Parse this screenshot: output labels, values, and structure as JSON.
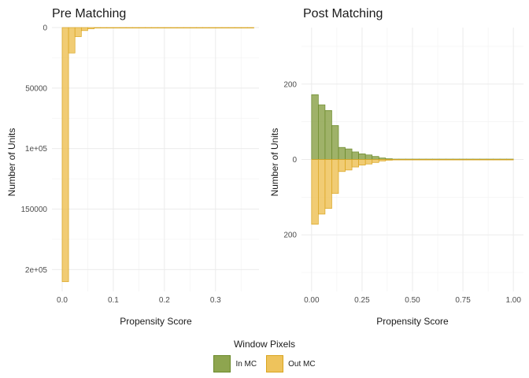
{
  "colors": {
    "in_fill": "#8ea54f",
    "in_stroke": "#6b8a2a",
    "out_fill": "#eec35c",
    "out_stroke": "#d9a520"
  },
  "legend": {
    "title": "Window Pixels",
    "items": [
      {
        "label": "In MC",
        "color": "#8ea54f",
        "border": "#6b8a2a"
      },
      {
        "label": "Out MC",
        "color": "#eec35c",
        "border": "#d9a520"
      }
    ]
  },
  "chart_data": [
    {
      "type": "bar",
      "title": "Pre Matching",
      "xlabel": "Propensity Score",
      "ylabel": "Number of Units",
      "xlim": [
        -0.02,
        0.385
      ],
      "ylim": [
        0,
        218000
      ],
      "x_ticks": [
        {
          "value": 0.0,
          "label": "0.0"
        },
        {
          "value": 0.1,
          "label": "0.1"
        },
        {
          "value": 0.2,
          "label": "0.2"
        },
        {
          "value": 0.3,
          "label": "0.3"
        }
      ],
      "y_ticks": [
        {
          "value": 0,
          "label": "0"
        },
        {
          "value": 50000,
          "label": "50000"
        },
        {
          "value": 100000,
          "label": "1e+05"
        },
        {
          "value": 150000,
          "label": "150000"
        },
        {
          "value": 200000,
          "label": "2e+05"
        }
      ],
      "bin_width": 0.0125,
      "series": [
        {
          "group": "Out MC",
          "direction": "down",
          "bins": [
            {
              "x": 0.0,
              "count": 210000
            },
            {
              "x": 0.0125,
              "count": 21000
            },
            {
              "x": 0.025,
              "count": 7500
            },
            {
              "x": 0.0375,
              "count": 2500
            },
            {
              "x": 0.05,
              "count": 1000
            },
            {
              "x": 0.0625,
              "count": 400
            },
            {
              "x": 0.075,
              "count": 200
            },
            {
              "x": 0.0875,
              "count": 120
            },
            {
              "x": 0.1,
              "count": 80
            },
            {
              "x": 0.1125,
              "count": 60
            },
            {
              "x": 0.125,
              "count": 50
            },
            {
              "x": 0.1375,
              "count": 40
            },
            {
              "x": 0.15,
              "count": 30
            },
            {
              "x": 0.1625,
              "count": 25
            },
            {
              "x": 0.175,
              "count": 20
            },
            {
              "x": 0.1875,
              "count": 18
            },
            {
              "x": 0.2,
              "count": 15
            },
            {
              "x": 0.2125,
              "count": 12
            },
            {
              "x": 0.225,
              "count": 10
            },
            {
              "x": 0.2375,
              "count": 8
            },
            {
              "x": 0.25,
              "count": 7
            },
            {
              "x": 0.2625,
              "count": 6
            },
            {
              "x": 0.275,
              "count": 5
            },
            {
              "x": 0.2875,
              "count": 4
            },
            {
              "x": 0.3,
              "count": 4
            },
            {
              "x": 0.3125,
              "count": 3
            },
            {
              "x": 0.325,
              "count": 3
            },
            {
              "x": 0.3375,
              "count": 2
            },
            {
              "x": 0.35,
              "count": 2
            },
            {
              "x": 0.3625,
              "count": 1
            }
          ]
        }
      ]
    },
    {
      "type": "bar",
      "title": "Post Matching",
      "xlabel": "Propensity Score",
      "ylabel": "Number of Units",
      "xlim": [
        -0.05,
        1.05
      ],
      "ylim": [
        -350,
        350
      ],
      "x_ticks": [
        {
          "value": 0.0,
          "label": "0.00"
        },
        {
          "value": 0.25,
          "label": "0.25"
        },
        {
          "value": 0.5,
          "label": "0.50"
        },
        {
          "value": 0.75,
          "label": "0.75"
        },
        {
          "value": 1.0,
          "label": "1.00"
        }
      ],
      "y_ticks": [
        {
          "value": 200,
          "label": "200"
        },
        {
          "value": 0,
          "label": "0"
        },
        {
          "value": -200,
          "label": "200"
        }
      ],
      "bin_width": 0.0333,
      "series": [
        {
          "group": "In MC",
          "direction": "up",
          "bins": [
            {
              "x": 0.0,
              "count": 172
            },
            {
              "x": 0.0333,
              "count": 145
            },
            {
              "x": 0.0667,
              "count": 130
            },
            {
              "x": 0.1,
              "count": 90
            },
            {
              "x": 0.1333,
              "count": 32
            },
            {
              "x": 0.1667,
              "count": 28
            },
            {
              "x": 0.2,
              "count": 20
            },
            {
              "x": 0.2333,
              "count": 15
            },
            {
              "x": 0.2667,
              "count": 12
            },
            {
              "x": 0.3,
              "count": 8
            },
            {
              "x": 0.3333,
              "count": 4
            },
            {
              "x": 0.3667,
              "count": 2
            },
            {
              "x": 0.4,
              "count": 1
            },
            {
              "x": 0.4333,
              "count": 1
            },
            {
              "x": 0.4667,
              "count": 1
            },
            {
              "x": 0.5,
              "count": 1
            },
            {
              "x": 0.5333,
              "count": 1
            },
            {
              "x": 0.5667,
              "count": 1
            },
            {
              "x": 0.6,
              "count": 1
            },
            {
              "x": 0.6333,
              "count": 1
            },
            {
              "x": 0.6667,
              "count": 1
            },
            {
              "x": 0.7,
              "count": 1
            },
            {
              "x": 0.7333,
              "count": 1
            },
            {
              "x": 0.7667,
              "count": 1
            },
            {
              "x": 0.8,
              "count": 1
            },
            {
              "x": 0.8333,
              "count": 1
            },
            {
              "x": 0.8667,
              "count": 1
            },
            {
              "x": 0.9,
              "count": 1
            },
            {
              "x": 0.9333,
              "count": 1
            },
            {
              "x": 0.9667,
              "count": 1
            }
          ]
        },
        {
          "group": "Out MC",
          "direction": "down",
          "bins": [
            {
              "x": 0.0,
              "count": 172
            },
            {
              "x": 0.0333,
              "count": 145
            },
            {
              "x": 0.0667,
              "count": 130
            },
            {
              "x": 0.1,
              "count": 90
            },
            {
              "x": 0.1333,
              "count": 32
            },
            {
              "x": 0.1667,
              "count": 28
            },
            {
              "x": 0.2,
              "count": 20
            },
            {
              "x": 0.2333,
              "count": 15
            },
            {
              "x": 0.2667,
              "count": 12
            },
            {
              "x": 0.3,
              "count": 8
            },
            {
              "x": 0.3333,
              "count": 4
            },
            {
              "x": 0.3667,
              "count": 2
            },
            {
              "x": 0.4,
              "count": 1
            },
            {
              "x": 0.4333,
              "count": 1
            },
            {
              "x": 0.4667,
              "count": 1
            },
            {
              "x": 0.5,
              "count": 1
            },
            {
              "x": 0.5333,
              "count": 1
            },
            {
              "x": 0.5667,
              "count": 1
            },
            {
              "x": 0.6,
              "count": 1
            },
            {
              "x": 0.6333,
              "count": 1
            },
            {
              "x": 0.6667,
              "count": 1
            },
            {
              "x": 0.7,
              "count": 1
            },
            {
              "x": 0.7333,
              "count": 1
            },
            {
              "x": 0.7667,
              "count": 1
            },
            {
              "x": 0.8,
              "count": 1
            },
            {
              "x": 0.8333,
              "count": 1
            },
            {
              "x": 0.8667,
              "count": 1
            },
            {
              "x": 0.9,
              "count": 1
            },
            {
              "x": 0.9333,
              "count": 1
            },
            {
              "x": 0.9667,
              "count": 1
            }
          ]
        }
      ]
    }
  ]
}
